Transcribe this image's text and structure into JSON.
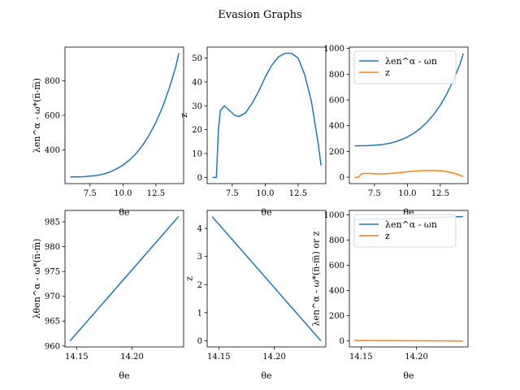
{
  "figure": {
    "suptitle": "Evasion Graphs"
  },
  "colors": {
    "blue": "#1f77b4",
    "orange": "#ff7f0e"
  },
  "chart_data": [
    {
      "id": "p1",
      "type": "line",
      "xlabel": "θe",
      "ylabel": "λen^α - ω*(n̅-m̅)",
      "xlim": [
        5.6,
        14.6
      ],
      "ylim": [
        205,
        995
      ],
      "xticks": [
        7.5,
        10.0,
        12.5
      ],
      "xticklabels": [
        "7.5",
        "10.0",
        "12.5"
      ],
      "yticks": [
        400,
        600,
        800
      ],
      "yticklabels": [
        "400",
        "600",
        "800"
      ],
      "series": [
        {
          "name": "λen^α - ωn",
          "color": "#1f77b4",
          "x": [
            6.0,
            7.0,
            8.0,
            8.5,
            9.0,
            9.5,
            10.0,
            10.5,
            11.0,
            11.5,
            12.0,
            12.5,
            13.0,
            13.5,
            14.0,
            14.24
          ],
          "y": [
            243,
            245,
            252,
            260,
            272,
            290,
            312,
            342,
            380,
            428,
            488,
            560,
            648,
            755,
            880,
            960
          ]
        }
      ]
    },
    {
      "id": "p2",
      "type": "line",
      "xlabel": "θe",
      "ylabel": "z",
      "xlim": [
        5.6,
        14.6
      ],
      "ylim": [
        -2.6,
        54.6
      ],
      "xticks": [
        7.5,
        10.0,
        12.5
      ],
      "xticklabels": [
        "7.5",
        "10.0",
        "12.5"
      ],
      "yticks": [
        0,
        10,
        20,
        30,
        40,
        50
      ],
      "yticklabels": [
        "0",
        "10",
        "20",
        "30",
        "40",
        "50"
      ],
      "series": [
        {
          "name": "z",
          "color": "#1f77b4",
          "x": [
            6.0,
            6.3,
            6.45,
            6.6,
            6.9,
            7.3,
            7.7,
            8.0,
            8.5,
            9.0,
            9.5,
            10.0,
            10.5,
            11.0,
            11.5,
            12.0,
            12.5,
            13.0,
            13.5,
            14.0,
            14.24
          ],
          "y": [
            0,
            0,
            20,
            28,
            30,
            28,
            26,
            25.5,
            27,
            31,
            36,
            42,
            47,
            50.5,
            52,
            52,
            50,
            43,
            32,
            15,
            5
          ]
        }
      ]
    },
    {
      "id": "p3",
      "type": "line",
      "xlabel": "θe",
      "ylabel": "",
      "xlim": [
        5.6,
        14.6
      ],
      "ylim": [
        -50,
        1010
      ],
      "xticks": [
        7.5,
        10.0,
        12.5
      ],
      "xticklabels": [
        "7.5",
        "10.0",
        "12.5"
      ],
      "yticks": [
        0,
        200,
        400,
        600,
        800,
        1000
      ],
      "yticklabels": [
        "0",
        "200",
        "400",
        "600",
        "800",
        "1000"
      ],
      "legend": "upper-left",
      "series": [
        {
          "name": "λen^α - ωn",
          "color": "#1f77b4",
          "x": [
            6.0,
            7.0,
            8.0,
            8.5,
            9.0,
            9.5,
            10.0,
            10.5,
            11.0,
            11.5,
            12.0,
            12.5,
            13.0,
            13.5,
            14.0,
            14.24
          ],
          "y": [
            243,
            245,
            252,
            260,
            272,
            290,
            312,
            342,
            380,
            428,
            488,
            560,
            648,
            755,
            880,
            960
          ]
        },
        {
          "name": "z",
          "color": "#ff7f0e",
          "x": [
            6.0,
            6.3,
            6.45,
            6.6,
            6.9,
            7.3,
            7.7,
            8.0,
            8.5,
            9.0,
            9.5,
            10.0,
            10.5,
            11.0,
            11.5,
            12.0,
            12.5,
            13.0,
            13.5,
            14.0,
            14.24
          ],
          "y": [
            0,
            0,
            20,
            28,
            30,
            28,
            26,
            25.5,
            27,
            31,
            36,
            42,
            47,
            50.5,
            52,
            52,
            50,
            43,
            32,
            15,
            5
          ]
        }
      ]
    },
    {
      "id": "p4",
      "type": "line",
      "xlabel": "θe",
      "ylabel": "λθen^α - ω*(n̅-m̅)",
      "xlim": [
        14.1395,
        14.2465
      ],
      "ylim": [
        959.8,
        987.3
      ],
      "xticks": [
        14.15,
        14.2
      ],
      "xticklabels": [
        "14.15",
        "14.20"
      ],
      "yticks": [
        960,
        965,
        970,
        975,
        980,
        985
      ],
      "yticklabels": [
        "960",
        "965",
        "970",
        "975",
        "980",
        "985"
      ],
      "series": [
        {
          "name": "λθen^α - ωn",
          "color": "#1f77b4",
          "x": [
            14.144,
            14.242
          ],
          "y": [
            961.0,
            986.1
          ]
        }
      ]
    },
    {
      "id": "p5",
      "type": "line",
      "xlabel": "θe",
      "ylabel": "z",
      "xlim": [
        14.1395,
        14.2465
      ],
      "ylim": [
        -0.22,
        4.64
      ],
      "xticks": [
        14.15,
        14.2
      ],
      "xticklabels": [
        "14.15",
        "14.20"
      ],
      "yticks": [
        0,
        1,
        2,
        3,
        4
      ],
      "yticklabels": [
        "0",
        "1",
        "2",
        "3",
        "4"
      ],
      "series": [
        {
          "name": "z",
          "color": "#1f77b4",
          "x": [
            14.144,
            14.242
          ],
          "y": [
            4.42,
            0.0
          ]
        }
      ]
    },
    {
      "id": "p6",
      "type": "line",
      "xlabel": "θe",
      "ylabel": "λen^α - ω*(n̅-m̅) or z",
      "xlim": [
        14.1395,
        14.2465
      ],
      "ylim": [
        -47,
        1035
      ],
      "xticks": [
        14.15,
        14.2
      ],
      "xticklabels": [
        "14.15",
        "14.20"
      ],
      "yticks": [
        0,
        200,
        400,
        600,
        800,
        1000
      ],
      "yticklabels": [
        "0",
        "200",
        "400",
        "600",
        "800",
        "1000"
      ],
      "legend": "upper-left",
      "series": [
        {
          "name": "λen^α - ωn",
          "color": "#1f77b4",
          "x": [
            14.144,
            14.242
          ],
          "y": [
            961.0,
            986.1
          ]
        },
        {
          "name": "z",
          "color": "#ff7f0e",
          "x": [
            14.144,
            14.242
          ],
          "y": [
            4.42,
            0.0
          ]
        }
      ]
    }
  ]
}
